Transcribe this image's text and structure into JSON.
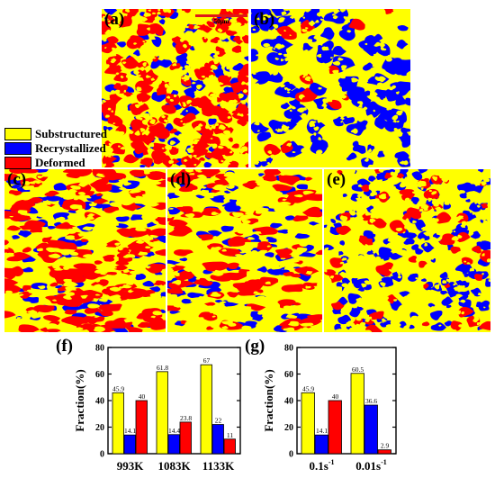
{
  "colors": {
    "substructured": "#ffff00",
    "recrystallized": "#0000ff",
    "deformed": "#ff0000"
  },
  "panels": [
    {
      "id": "a",
      "label": "(a)",
      "mix": {
        "substructured": 0.459,
        "recrystallized": 0.141,
        "deformed": 0.4
      }
    },
    {
      "id": "b",
      "label": "(b)",
      "mix": {
        "substructured": 0.605,
        "recrystallized": 0.366,
        "deformed": 0.029
      }
    },
    {
      "id": "c",
      "label": "(c)",
      "mix": {
        "substructured": 0.459,
        "recrystallized": 0.141,
        "deformed": 0.4
      }
    },
    {
      "id": "d",
      "label": "(d)",
      "mix": {
        "substructured": 0.618,
        "recrystallized": 0.144,
        "deformed": 0.238
      }
    },
    {
      "id": "e",
      "label": "(e)",
      "mix": {
        "substructured": 0.67,
        "recrystallized": 0.22,
        "deformed": 0.11
      }
    }
  ],
  "scale_bar": "50μm",
  "legend": [
    {
      "label": "Substructured",
      "color": "#ffff00"
    },
    {
      "label": "Recrystallized",
      "color": "#0000ff"
    },
    {
      "label": "Deformed",
      "color": "#ff0000"
    }
  ],
  "chart_data": [
    {
      "id": "f",
      "label": "(f)",
      "type": "bar",
      "ylabel": "Fraction(%)",
      "ylim": [
        0,
        80
      ],
      "yticks": [
        "0",
        "20",
        "40",
        "60",
        "80"
      ],
      "categories": [
        "993K",
        "1083K",
        "1133K"
      ],
      "series": [
        {
          "key": "substructured",
          "values": [
            45.9,
            61.8,
            67
          ]
        },
        {
          "key": "recrystallized",
          "values": [
            14.1,
            14.4,
            22
          ]
        },
        {
          "key": "deformed",
          "values": [
            40,
            23.8,
            11
          ]
        }
      ],
      "value_labels": [
        [
          "45.9",
          "61.8",
          "67"
        ],
        [
          "14.1",
          "14.4",
          "22"
        ],
        [
          "40",
          "23.8",
          "11"
        ]
      ]
    },
    {
      "id": "g",
      "label": "(g)",
      "type": "bar",
      "ylabel": "Fraction(%)",
      "ylim": [
        0,
        80
      ],
      "yticks": [
        "0",
        "20",
        "40",
        "60",
        "80"
      ],
      "categories": [
        "0.1s",
        "0.01s"
      ],
      "category_superscript": "-1",
      "series": [
        {
          "key": "substructured",
          "values": [
            45.9,
            60.5
          ]
        },
        {
          "key": "recrystallized",
          "values": [
            14.1,
            36.6
          ]
        },
        {
          "key": "deformed",
          "values": [
            40,
            2.9
          ]
        }
      ],
      "value_labels": [
        [
          "45.9",
          "60.5"
        ],
        [
          "14.1",
          "36.6"
        ],
        [
          "40",
          "2.9"
        ]
      ]
    }
  ]
}
